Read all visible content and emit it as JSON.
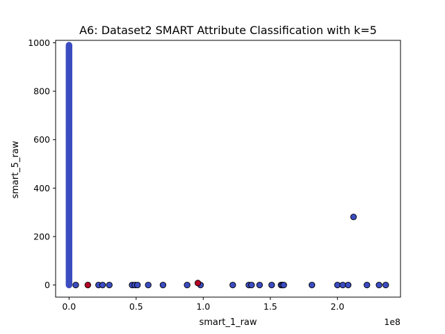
{
  "chart_data": {
    "type": "scatter",
    "title": "A6: Dataset2 SMART Attribute Classification with k=5",
    "xlabel": "smart_1_raw",
    "ylabel": "smart_5_raw",
    "x_offset_text": "1e8",
    "xlim": [
      -10000000,
      247000000
    ],
    "ylim": [
      -50,
      1010
    ],
    "x_ticks": [
      0,
      50000000,
      100000000,
      150000000,
      200000000
    ],
    "x_tick_labels": [
      "0.0",
      "0.5",
      "1.0",
      "1.5",
      "2.0"
    ],
    "y_ticks": [
      0,
      200,
      400,
      600,
      800,
      1000
    ],
    "y_tick_labels": [
      "0",
      "200",
      "400",
      "600",
      "800",
      "1000"
    ],
    "grid": false,
    "legend": "none",
    "colors": {
      "blue": "#3b4cc0",
      "red": "#b40426",
      "edge": "#000000"
    },
    "series": [
      {
        "color": "blue",
        "points": [
          [
            5000000,
            0
          ],
          [
            22000000,
            0
          ],
          [
            25000000,
            0
          ],
          [
            30000000,
            0
          ],
          [
            47000000,
            0
          ],
          [
            49000000,
            0
          ],
          [
            51000000,
            0
          ],
          [
            59000000,
            0
          ],
          [
            70000000,
            0
          ],
          [
            88000000,
            0
          ],
          [
            98000000,
            0
          ],
          [
            122000000,
            0
          ],
          [
            134000000,
            0
          ],
          [
            136000000,
            0
          ],
          [
            142000000,
            0
          ],
          [
            151000000,
            0
          ],
          [
            158000000,
            0
          ],
          [
            159000000,
            0
          ],
          [
            160000000,
            0
          ],
          [
            181000000,
            0
          ],
          [
            200000000,
            0
          ],
          [
            204000000,
            0
          ],
          [
            208000000,
            0
          ],
          [
            212000000,
            281
          ],
          [
            222000000,
            0
          ],
          [
            231000000,
            0
          ],
          [
            236000000,
            0
          ]
        ]
      },
      {
        "color": "red",
        "points": [
          [
            14000000,
            0
          ],
          [
            96000000,
            8
          ]
        ]
      }
    ],
    "dense_column": {
      "x": 0,
      "y_min": 0,
      "y_max": 990,
      "color": "blue"
    }
  }
}
